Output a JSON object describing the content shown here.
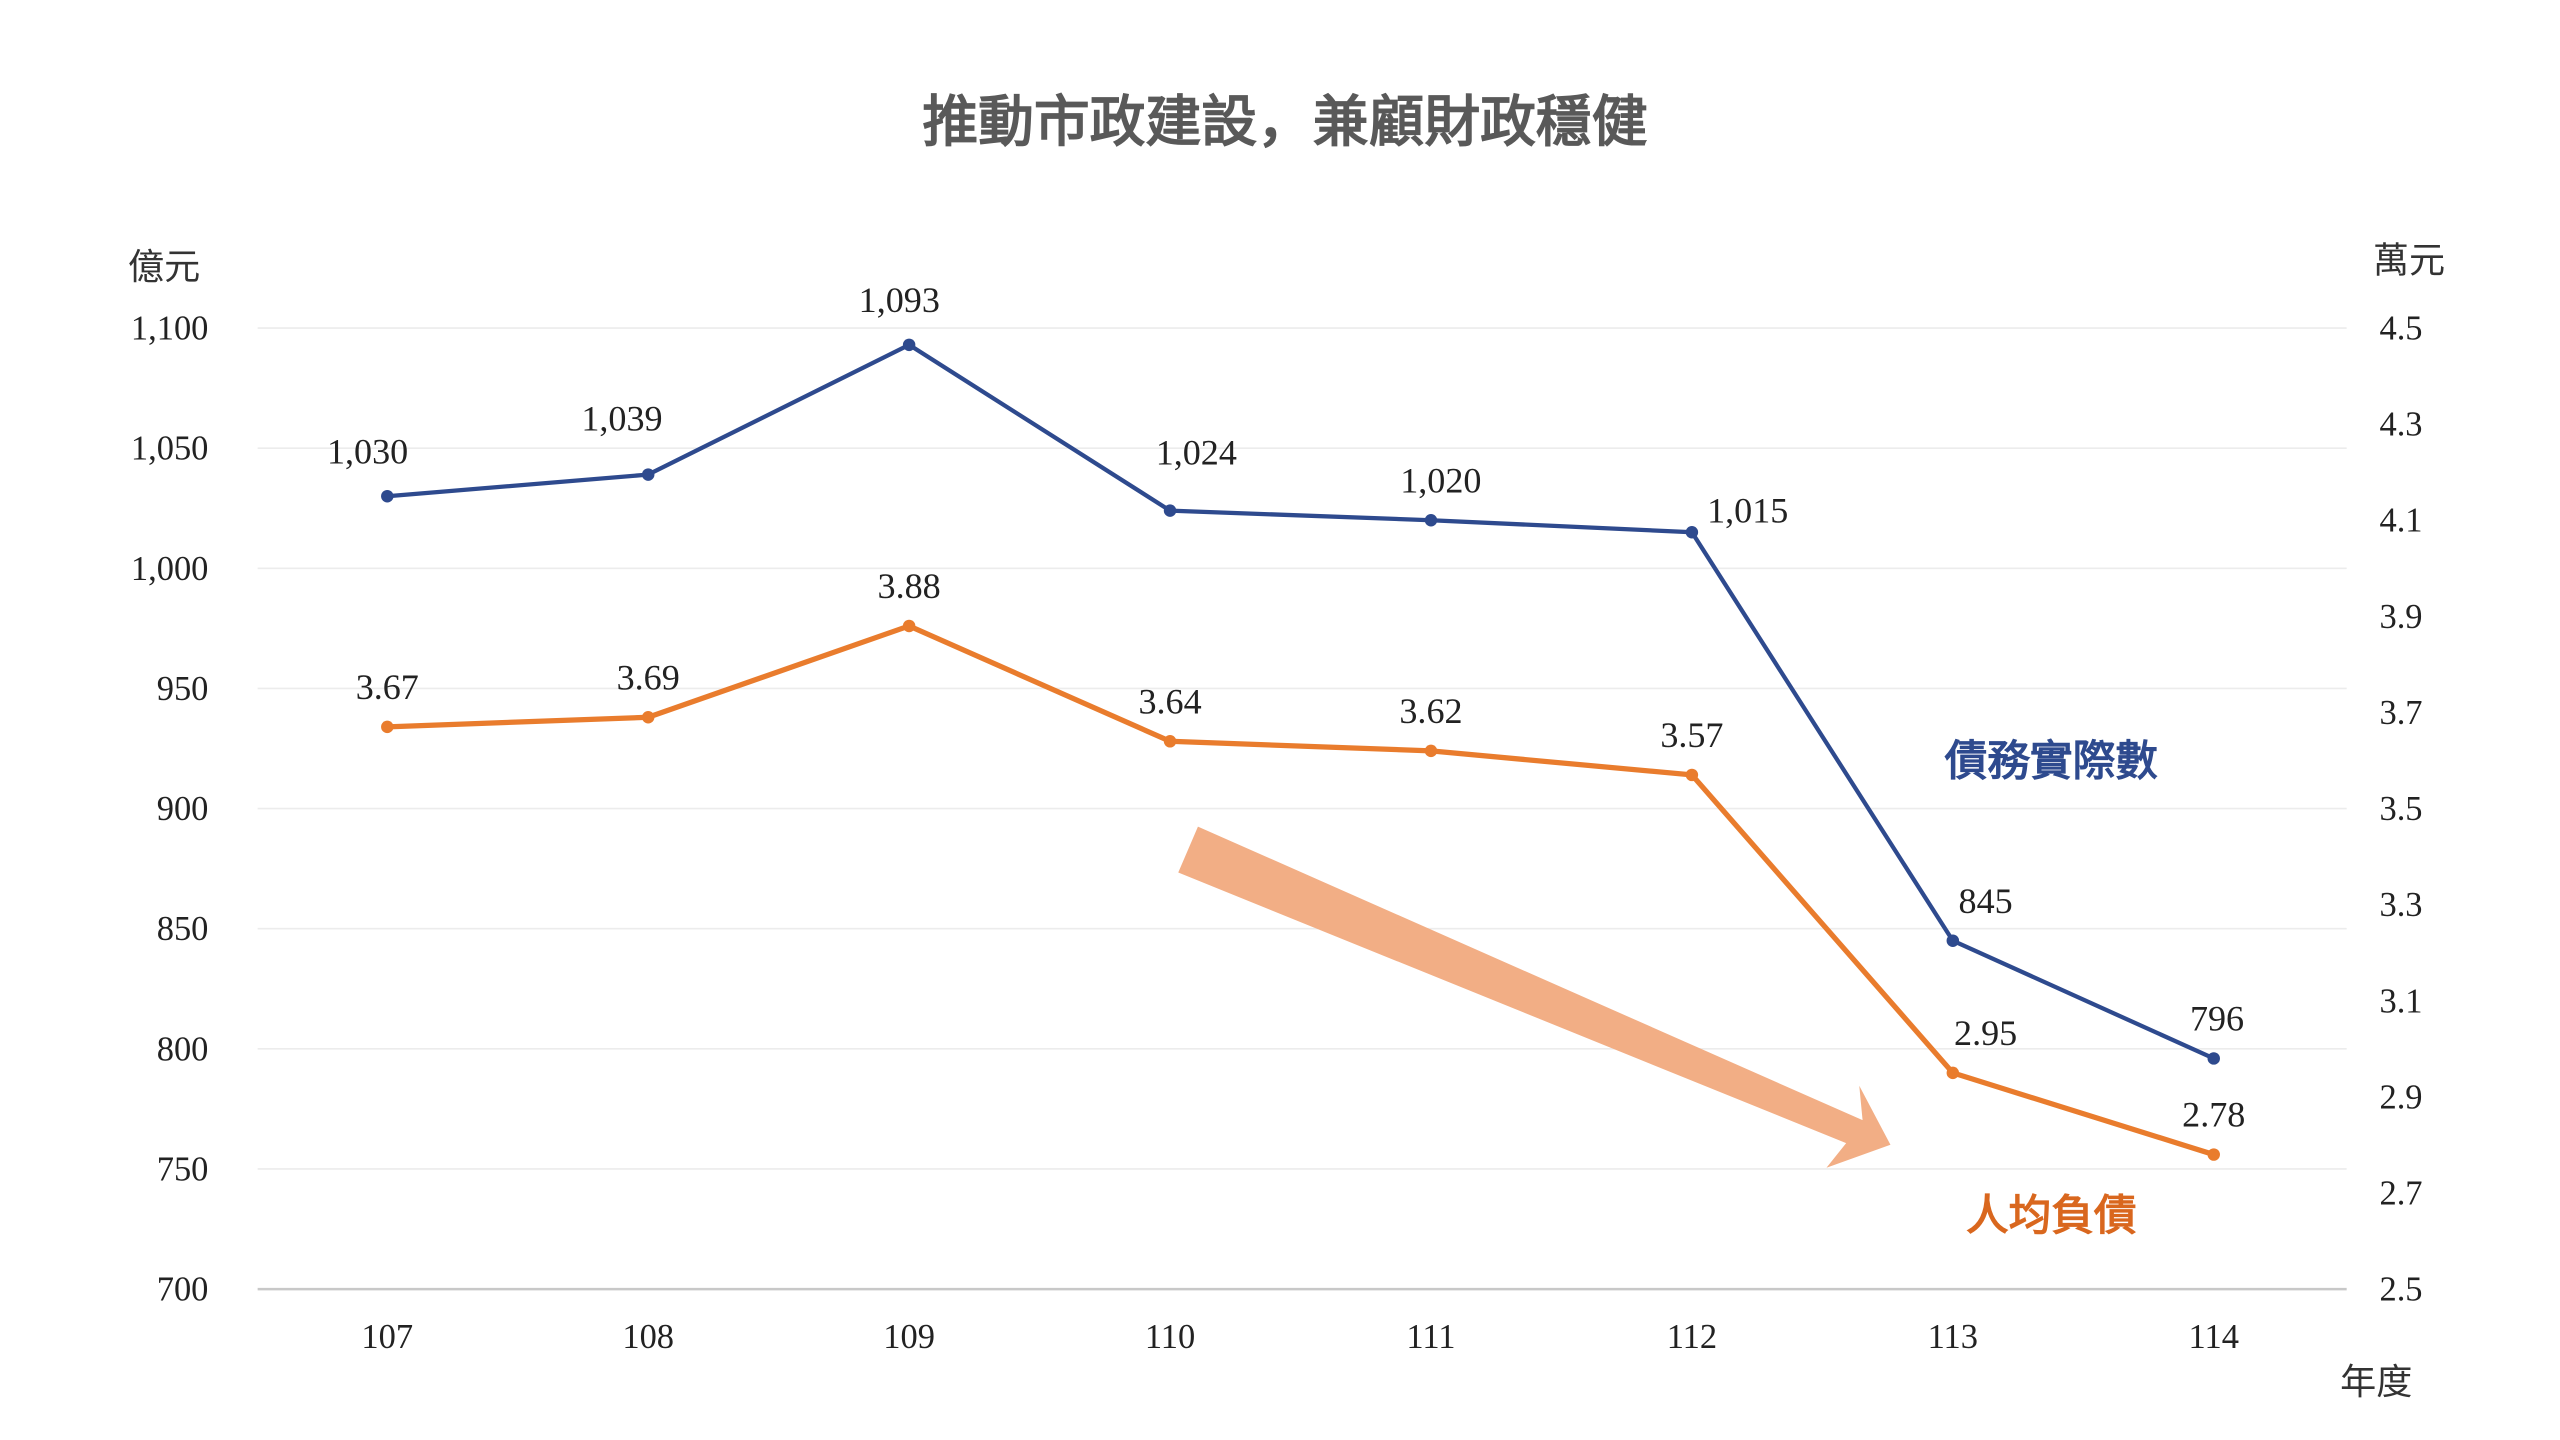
{
  "chart_data": {
    "type": "line",
    "title": "推動市政建設，兼顧財政穩健",
    "xlabel": "年度",
    "ylabel_left": "億元",
    "ylabel_right": "萬元",
    "categories": [
      "107",
      "108",
      "109",
      "110",
      "111",
      "112",
      "113",
      "114"
    ],
    "y_left": {
      "range": [
        700,
        1100
      ],
      "ticks": [
        "700",
        "750",
        "800",
        "850",
        "900",
        "950",
        "1,000",
        "1,050",
        "1,100"
      ]
    },
    "y_right": {
      "range": [
        2.5,
        4.5
      ],
      "ticks": [
        "2.5",
        "2.7",
        "2.9",
        "3.1",
        "3.3",
        "3.5",
        "3.7",
        "3.9",
        "4.1",
        "4.3",
        "4.5"
      ]
    },
    "grid": true,
    "series": [
      {
        "name": "債務實際數",
        "axis": "left",
        "color": "#2E4A8E",
        "values": [
          1030,
          1039,
          1093,
          1024,
          1020,
          1015,
          845,
          796
        ],
        "labels": [
          "1,030",
          "1,039",
          "1,093",
          "1,024",
          "1,020",
          "1,015",
          "845",
          "796"
        ]
      },
      {
        "name": "人均負債",
        "axis": "right",
        "color": "#E97C2D",
        "values": [
          3.67,
          3.69,
          3.88,
          3.64,
          3.62,
          3.57,
          2.95,
          2.78
        ],
        "labels": [
          "3.67",
          "3.69",
          "3.88",
          "3.64",
          "3.62",
          "3.57",
          "2.95",
          "2.78"
        ]
      }
    ],
    "annotations": [
      {
        "type": "arrow",
        "direction": "down-right",
        "color": "#F2AE85"
      }
    ]
  }
}
